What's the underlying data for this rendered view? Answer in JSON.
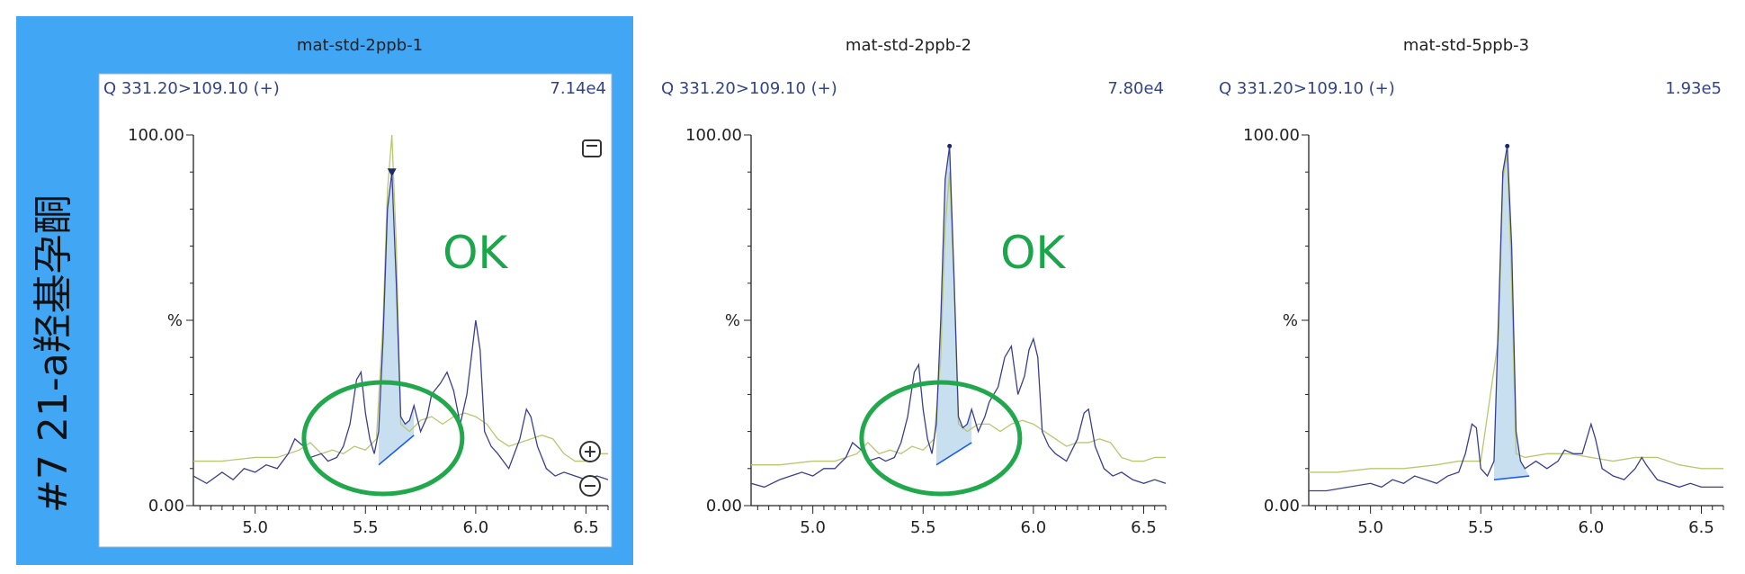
{
  "side_label": "#7 21-a羟基孕酮",
  "annotations": {
    "ok_text": "OK"
  },
  "colors": {
    "selected_panel": "#41a6f4",
    "trace_blue": "#3a3f8f",
    "trace_green": "#b8c870",
    "peak_fill": "#c8dff0",
    "baseline": "#1a5cff",
    "annotation_green": "#1aa64a",
    "circle_green": "#22a84c",
    "label_blue": "#334488"
  },
  "chart_data": [
    {
      "type": "line",
      "title": "mat-std-2ppb-1",
      "channel": "Q 331.20>109.10 (+)",
      "intensity": "7.14e4",
      "selected": true,
      "has_ok": true,
      "has_circle": true,
      "has_zoom_controls": true,
      "ylabel": "%",
      "yticks": [
        "100.00",
        "0.00"
      ],
      "xticks": [
        "5.0",
        "5.5",
        "6.0",
        "6.5"
      ],
      "xlim": [
        4.72,
        6.6
      ],
      "ylim": [
        0,
        100
      ],
      "peak": {
        "start": 5.56,
        "apex": 5.62,
        "end": 5.72,
        "apex_y": 90,
        "start_y": 11,
        "end_y": 19
      },
      "series": [
        {
          "x": [
            4.72,
            4.78,
            4.85,
            4.9,
            4.95,
            5.0,
            5.05,
            5.1,
            5.15,
            5.18,
            5.22,
            5.25,
            5.3,
            5.33,
            5.37,
            5.4,
            5.43,
            5.46,
            5.48,
            5.5,
            5.52,
            5.54,
            5.56,
            5.58,
            5.6,
            5.62,
            5.64,
            5.66,
            5.68,
            5.7,
            5.72,
            5.75,
            5.78,
            5.8,
            5.84,
            5.87,
            5.9,
            5.93,
            5.96,
            5.98,
            6.0,
            6.02,
            6.04,
            6.07,
            6.1,
            6.15,
            6.2,
            6.23,
            6.25,
            6.28,
            6.32,
            6.36,
            6.4,
            6.45,
            6.5,
            6.55,
            6.6
          ],
          "y": [
            8,
            6,
            9,
            7,
            10,
            9,
            11,
            10,
            14,
            18,
            16,
            13,
            14,
            12,
            13,
            16,
            22,
            34,
            36,
            25,
            18,
            14,
            20,
            45,
            80,
            90,
            60,
            24,
            22,
            23,
            27,
            20,
            24,
            30,
            33,
            36,
            31,
            22,
            30,
            40,
            50,
            42,
            20,
            16,
            14,
            10,
            18,
            26,
            24,
            16,
            10,
            8,
            9,
            8,
            7,
            8,
            7
          ]
        },
        {
          "x": [
            4.72,
            4.85,
            5.0,
            5.1,
            5.2,
            5.25,
            5.3,
            5.35,
            5.4,
            5.45,
            5.5,
            5.55,
            5.58,
            5.6,
            5.62,
            5.64,
            5.66,
            5.7,
            5.75,
            5.8,
            5.85,
            5.9,
            5.95,
            6.0,
            6.05,
            6.1,
            6.15,
            6.2,
            6.25,
            6.3,
            6.35,
            6.4,
            6.45,
            6.5,
            6.55,
            6.6
          ],
          "y": [
            12,
            12,
            13,
            13,
            15,
            17,
            14,
            15,
            14,
            16,
            15,
            18,
            50,
            85,
            100,
            70,
            22,
            20,
            23,
            24,
            22,
            24,
            25,
            24,
            22,
            18,
            16,
            17,
            18,
            19,
            18,
            14,
            12,
            12,
            14,
            14
          ]
        }
      ]
    },
    {
      "type": "line",
      "title": "mat-std-2ppb-2",
      "channel": "Q 331.20>109.10 (+)",
      "intensity": "7.80e4",
      "selected": false,
      "has_ok": true,
      "has_circle": true,
      "has_zoom_controls": false,
      "ylabel": "%",
      "yticks": [
        "100.00",
        "0.00"
      ],
      "xticks": [
        "5.0",
        "5.5",
        "6.0",
        "6.5"
      ],
      "xlim": [
        4.72,
        6.6
      ],
      "ylim": [
        0,
        100
      ],
      "peak": {
        "start": 5.56,
        "apex": 5.62,
        "end": 5.72,
        "apex_y": 97,
        "start_y": 11,
        "end_y": 17
      },
      "series": [
        {
          "x": [
            4.72,
            4.78,
            4.85,
            4.9,
            4.95,
            5.0,
            5.05,
            5.1,
            5.15,
            5.18,
            5.22,
            5.25,
            5.3,
            5.33,
            5.37,
            5.4,
            5.43,
            5.46,
            5.48,
            5.5,
            5.52,
            5.54,
            5.56,
            5.58,
            5.6,
            5.62,
            5.64,
            5.66,
            5.68,
            5.7,
            5.72,
            5.75,
            5.78,
            5.8,
            5.84,
            5.87,
            5.9,
            5.93,
            5.96,
            5.98,
            6.0,
            6.02,
            6.04,
            6.07,
            6.1,
            6.15,
            6.2,
            6.23,
            6.25,
            6.28,
            6.32,
            6.36,
            6.4,
            6.45,
            6.5,
            6.55,
            6.6
          ],
          "y": [
            6,
            5,
            7,
            8,
            9,
            8,
            10,
            10,
            13,
            17,
            15,
            12,
            13,
            12,
            13,
            17,
            24,
            36,
            38,
            26,
            18,
            14,
            22,
            50,
            88,
            97,
            62,
            24,
            21,
            22,
            26,
            20,
            24,
            28,
            32,
            40,
            43,
            30,
            35,
            42,
            45,
            40,
            20,
            16,
            14,
            12,
            18,
            25,
            26,
            16,
            10,
            8,
            9,
            7,
            6,
            7,
            6
          ]
        },
        {
          "x": [
            4.72,
            4.85,
            5.0,
            5.1,
            5.2,
            5.25,
            5.3,
            5.35,
            5.4,
            5.45,
            5.5,
            5.55,
            5.58,
            5.6,
            5.62,
            5.64,
            5.66,
            5.7,
            5.75,
            5.8,
            5.85,
            5.9,
            5.95,
            6.0,
            6.05,
            6.1,
            6.15,
            6.2,
            6.25,
            6.3,
            6.35,
            6.4,
            6.45,
            6.5,
            6.55,
            6.6
          ],
          "y": [
            11,
            11,
            12,
            12,
            14,
            17,
            14,
            15,
            14,
            16,
            15,
            18,
            40,
            75,
            90,
            60,
            22,
            20,
            22,
            22,
            20,
            22,
            23,
            22,
            20,
            18,
            16,
            17,
            17,
            18,
            17,
            13,
            12,
            12,
            13,
            13
          ]
        }
      ]
    },
    {
      "type": "line",
      "title": "mat-std-5ppb-3",
      "channel": "Q 331.20>109.10 (+)",
      "intensity": "1.93e5",
      "selected": false,
      "has_ok": false,
      "has_circle": false,
      "has_zoom_controls": false,
      "ylabel": "%",
      "yticks": [
        "100.00",
        "0.00"
      ],
      "xticks": [
        "5.0",
        "5.5",
        "6.0",
        "6.5"
      ],
      "xlim": [
        4.72,
        6.6
      ],
      "ylim": [
        0,
        100
      ],
      "peak": {
        "start": 5.56,
        "apex": 5.62,
        "end": 5.72,
        "apex_y": 97,
        "start_y": 7,
        "end_y": 8
      },
      "series": [
        {
          "x": [
            4.72,
            4.8,
            4.9,
            5.0,
            5.05,
            5.1,
            5.15,
            5.2,
            5.25,
            5.3,
            5.35,
            5.4,
            5.43,
            5.46,
            5.48,
            5.5,
            5.53,
            5.56,
            5.58,
            5.6,
            5.62,
            5.64,
            5.66,
            5.68,
            5.7,
            5.75,
            5.8,
            5.85,
            5.88,
            5.92,
            5.96,
            6.0,
            6.02,
            6.05,
            6.1,
            6.15,
            6.2,
            6.23,
            6.25,
            6.3,
            6.35,
            6.4,
            6.45,
            6.5,
            6.55,
            6.6
          ],
          "y": [
            4,
            4,
            5,
            6,
            5,
            7,
            6,
            8,
            7,
            6,
            8,
            9,
            14,
            22,
            21,
            10,
            8,
            12,
            50,
            90,
            97,
            70,
            20,
            12,
            10,
            12,
            10,
            12,
            15,
            14,
            14,
            22,
            18,
            10,
            8,
            7,
            10,
            13,
            11,
            7,
            6,
            5,
            6,
            5,
            5,
            5
          ]
        },
        {
          "x": [
            4.72,
            4.85,
            5.0,
            5.15,
            5.3,
            5.4,
            5.5,
            5.58,
            5.6,
            5.62,
            5.64,
            5.66,
            5.7,
            5.8,
            5.9,
            6.0,
            6.1,
            6.2,
            6.3,
            6.4,
            6.5,
            6.6
          ],
          "y": [
            9,
            9,
            10,
            10,
            11,
            12,
            12,
            45,
            88,
            95,
            60,
            14,
            13,
            14,
            14,
            13,
            12,
            13,
            13,
            11,
            10,
            10
          ]
        }
      ]
    }
  ]
}
